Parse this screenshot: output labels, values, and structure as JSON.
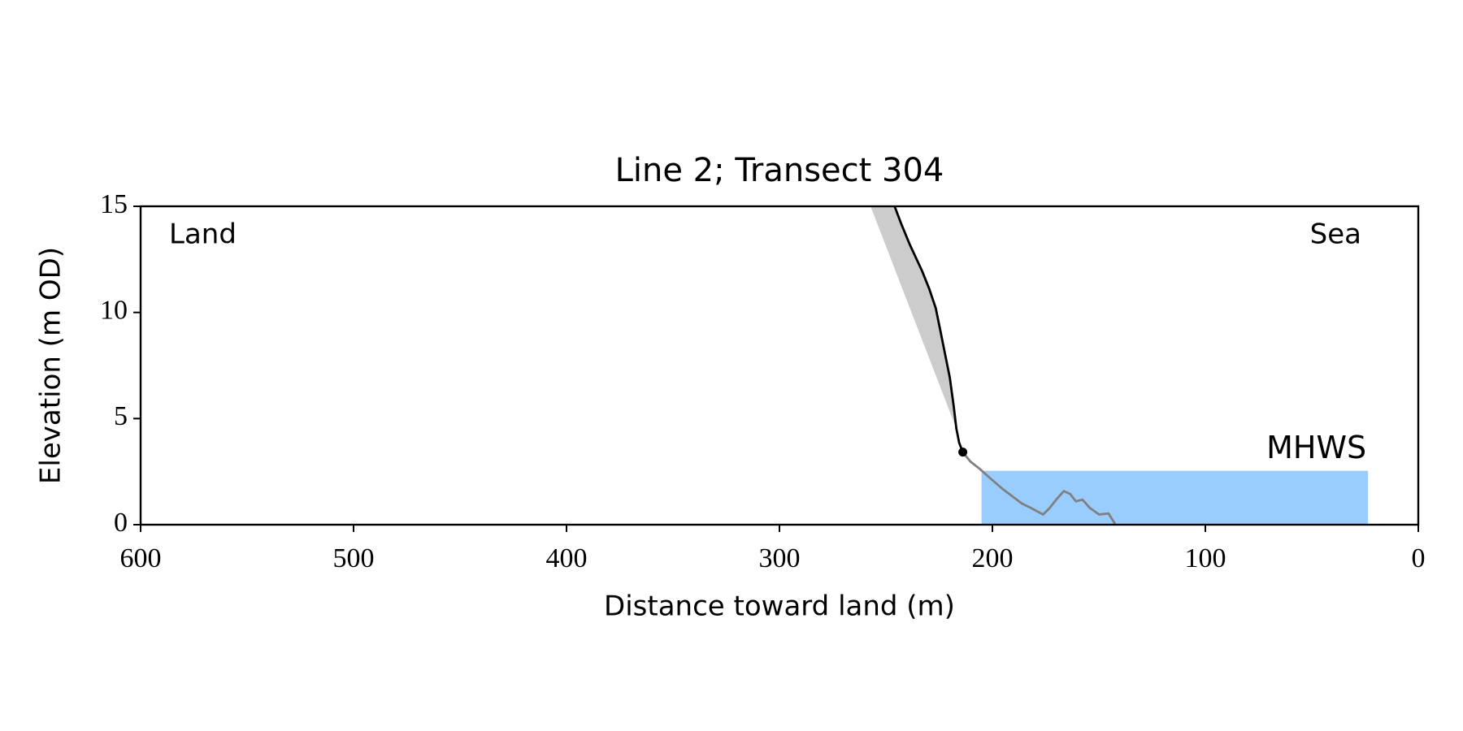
{
  "chart_data": {
    "type": "line",
    "title": "Line 2; Transect 304",
    "xlabel": "Distance toward land (m)",
    "ylabel": "Elevation (m OD)",
    "land_label": "Land",
    "sea_label": "Sea",
    "xlim": [
      600,
      0
    ],
    "ylim": [
      0,
      15
    ],
    "xticks": [
      600,
      500,
      400,
      300,
      200,
      100,
      0
    ],
    "yticks": [
      0,
      5,
      10,
      15
    ],
    "cliff_zone": {
      "color": "#cccccc",
      "x": [
        257.2,
        245.9,
        242.8,
        238.8,
        233.1,
        229.6,
        226.6,
        224.4,
        222.2,
        220.0,
        218.2,
        216.9
      ],
      "y": [
        15,
        15,
        14.17,
        13.2,
        11.97,
        11.1,
        10.2,
        9.12,
        8.03,
        6.93,
        5.61,
        4.52
      ]
    },
    "mhws": {
      "label": "MHWS",
      "x": [
        205.1,
        23.6
      ],
      "level": 2.54,
      "color": "#99ccff",
      "label_color": "#6699cc"
    },
    "foreshore": {
      "color": "#808080",
      "x": [
        213.9,
        210.4,
        205.9,
        201.6,
        195.0,
        186.2,
        181.9,
        176.2,
        173.1,
        169.6,
        166.5,
        163.5,
        160.8,
        157.7,
        154.2,
        149.9,
        145.5,
        142.4
      ],
      "y": [
        3.42,
        2.98,
        2.63,
        2.24,
        1.67,
        1.0,
        0.79,
        0.48,
        0.79,
        1.23,
        1.58,
        1.45,
        1.1,
        1.18,
        0.79,
        0.48,
        0.53,
        0.04
      ]
    },
    "cliff_profile": {
      "color": "#000000",
      "x": [
        245.9,
        242.8,
        238.8,
        233.1,
        229.6,
        226.6,
        224.4,
        222.2,
        220.0,
        218.2,
        216.9,
        215.6,
        213.9
      ],
      "y": [
        15,
        14.17,
        13.2,
        11.97,
        11.1,
        10.2,
        9.12,
        8.03,
        6.93,
        5.61,
        4.52,
        3.86,
        3.42
      ]
    },
    "cliff_toe": {
      "x": 213.9,
      "y": 3.42,
      "color": "#000000"
    }
  }
}
